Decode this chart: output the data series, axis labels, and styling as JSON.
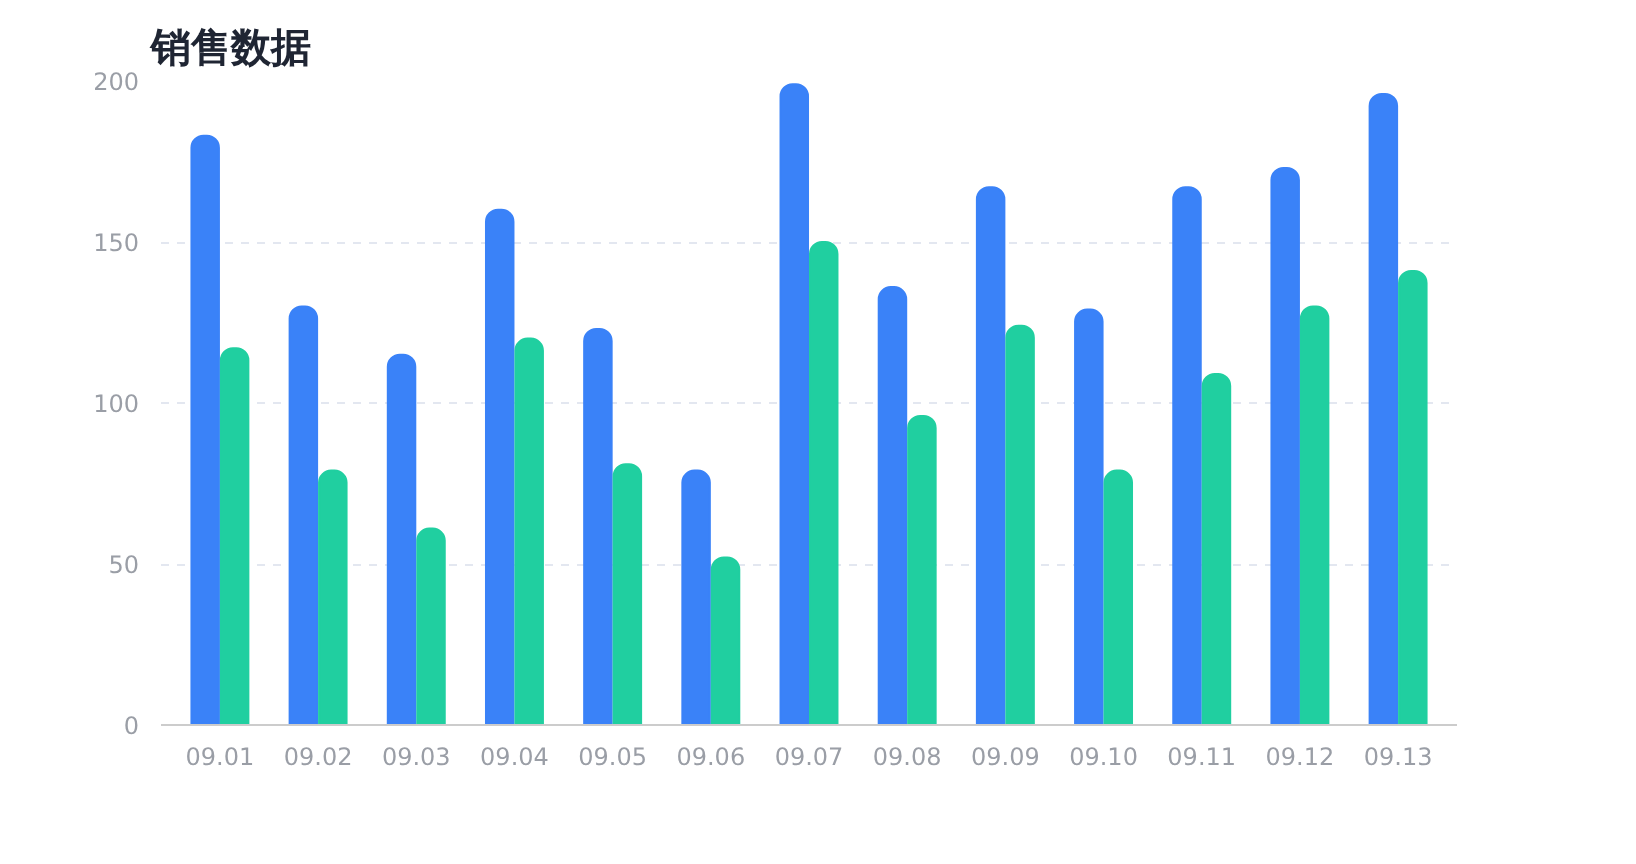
{
  "chart_data": {
    "type": "bar",
    "title": "销售数据",
    "categories": [
      "09.01",
      "09.02",
      "09.03",
      "09.04",
      "09.05",
      "09.06",
      "09.07",
      "09.08",
      "09.09",
      "09.10",
      "09.11",
      "09.12",
      "09.13"
    ],
    "series": [
      {
        "color": "#3a82f8",
        "values": [
          183,
          130,
          115,
          160,
          123,
          79,
          199,
          136,
          167,
          129,
          167,
          173,
          196
        ]
      },
      {
        "color": "#20cfa0",
        "values": [
          117,
          79,
          61,
          120,
          81,
          52,
          150,
          96,
          124,
          79,
          109,
          130,
          141
        ]
      }
    ],
    "ylim": [
      0,
      200
    ],
    "yticks": [
      0,
      50,
      100,
      150,
      200
    ],
    "grid": "y"
  }
}
